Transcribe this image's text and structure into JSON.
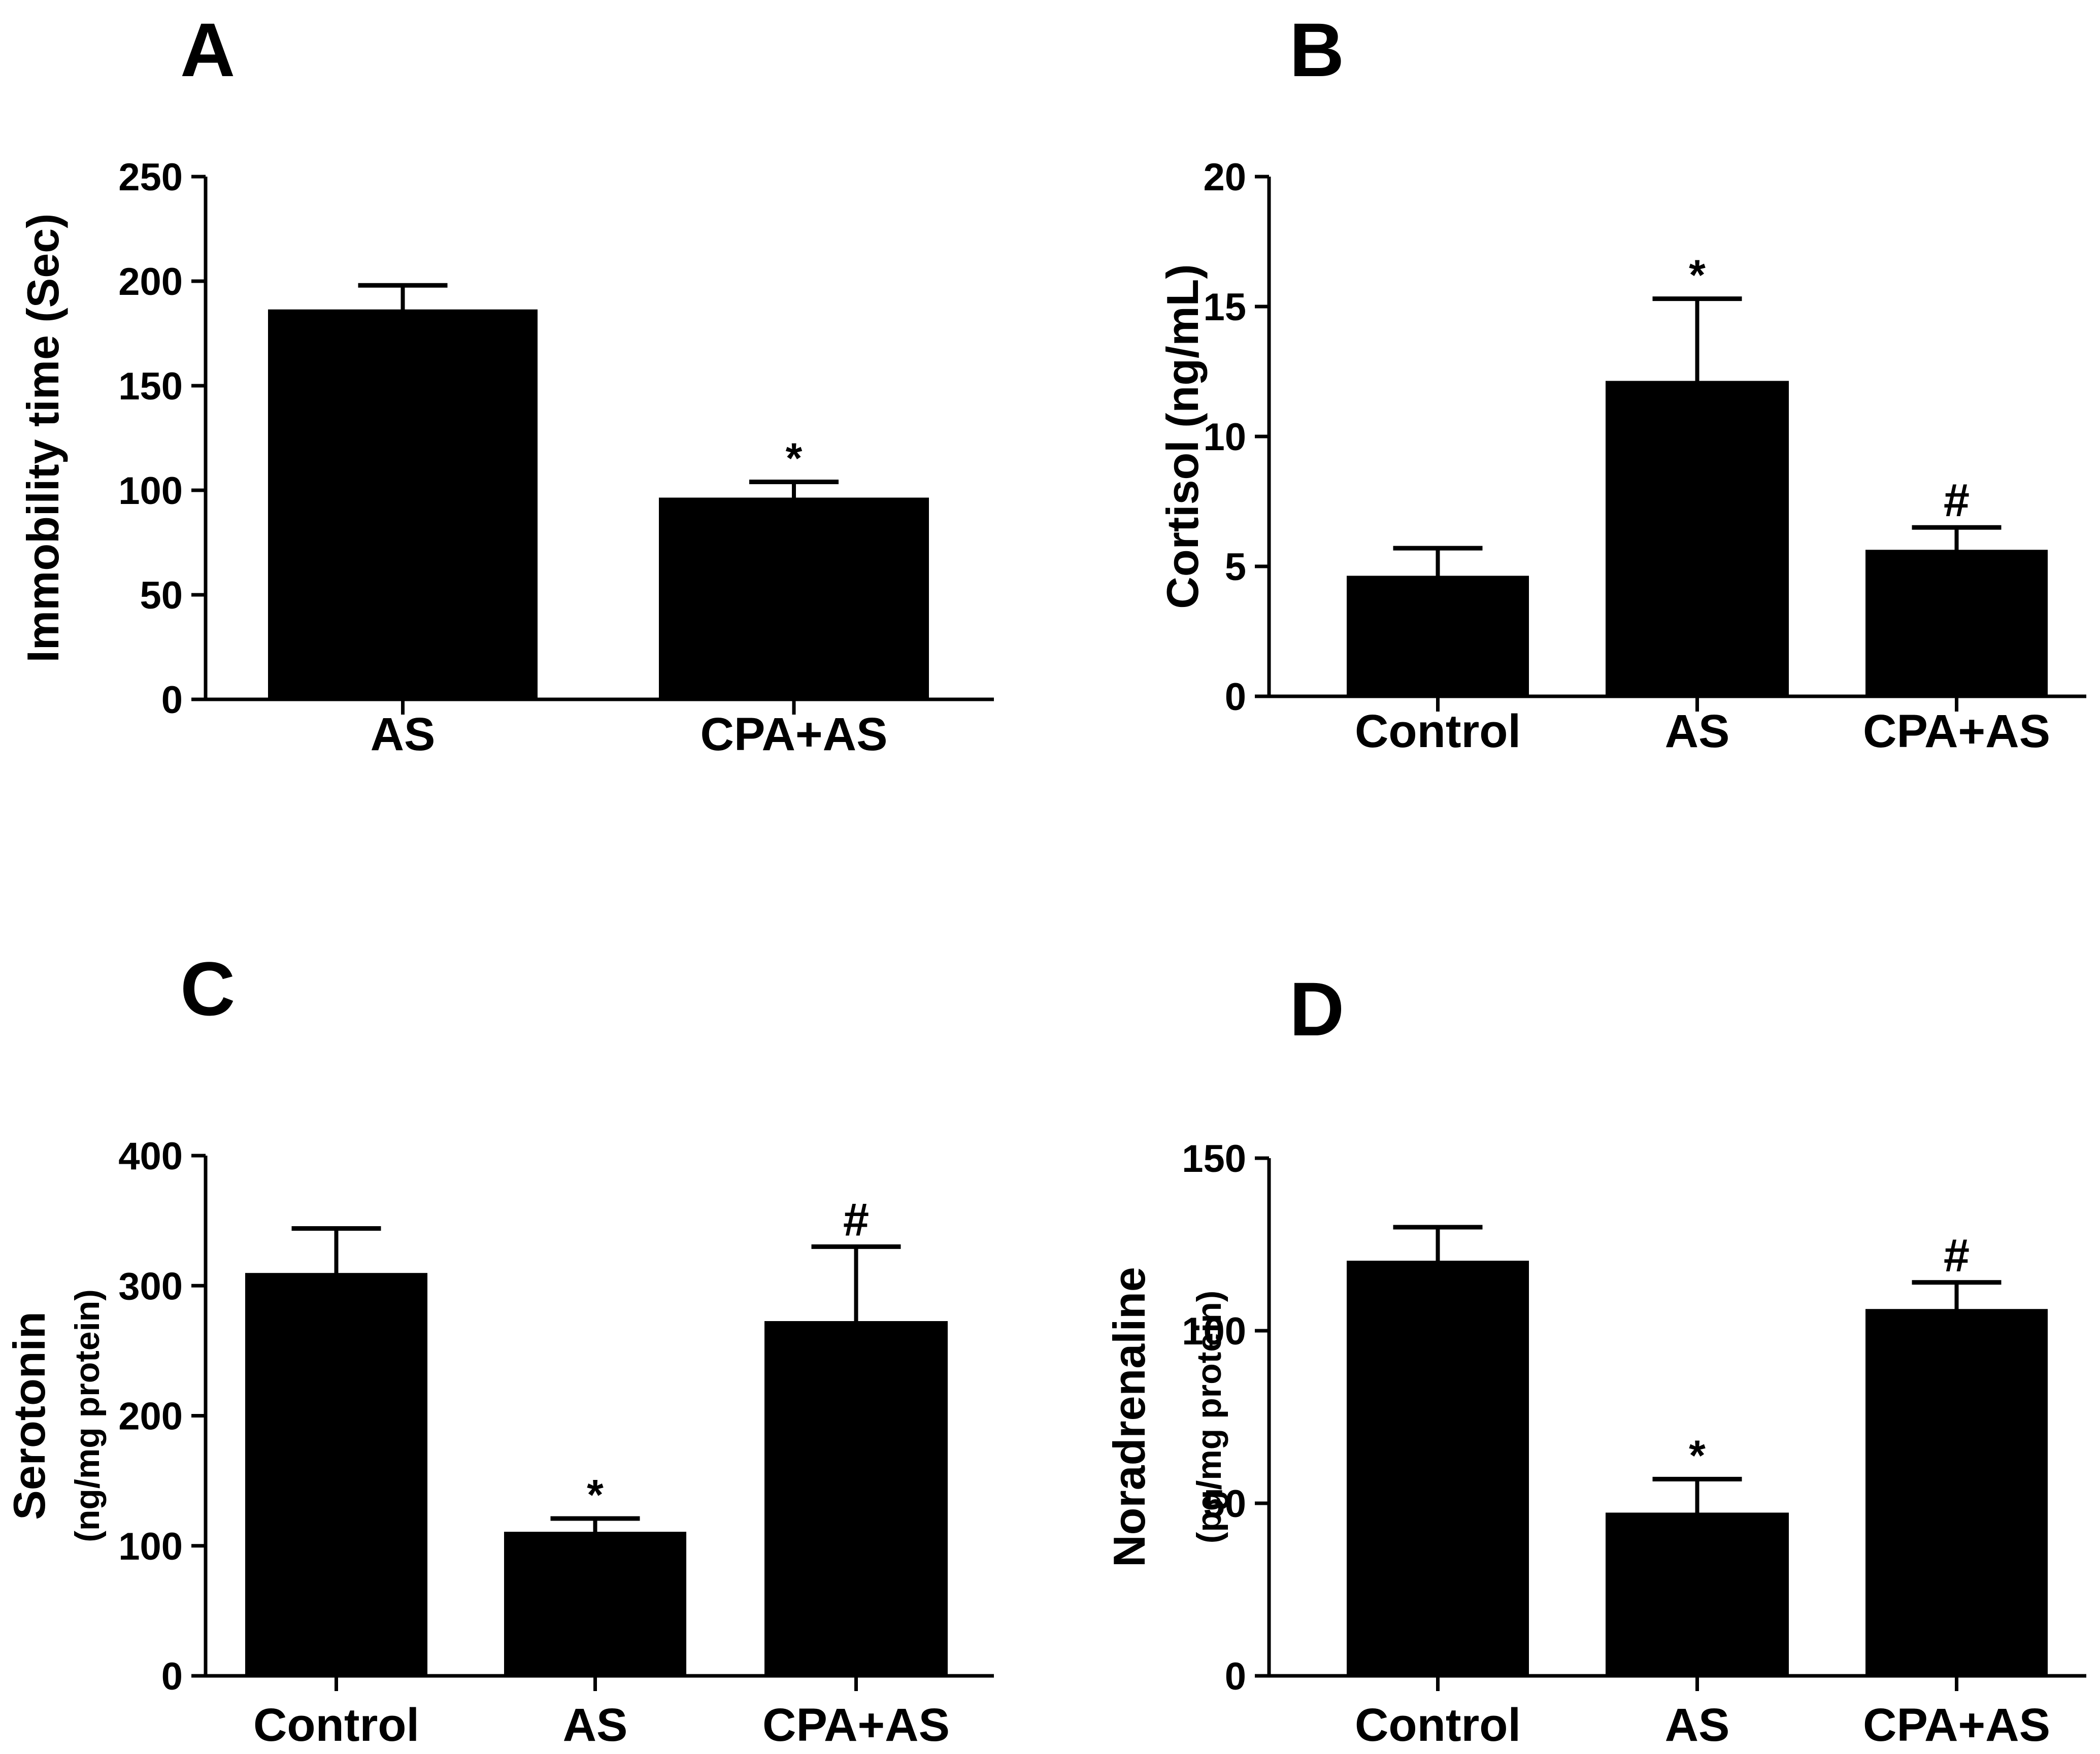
{
  "colors": {
    "bar": "#000000",
    "axis": "#000000",
    "background": "#ffffff"
  },
  "chart_data": [
    {
      "panel": "A",
      "type": "bar",
      "categories": [
        "AS",
        "CPA+AS"
      ],
      "values": [
        186,
        96
      ],
      "errors": [
        12,
        8
      ],
      "markers": [
        "",
        "*"
      ],
      "ylabel": "Immobility time (Sec)",
      "ylabel_sub": "",
      "ylim": [
        0,
        250
      ],
      "yticks": [
        0,
        50,
        100,
        150,
        200,
        250
      ]
    },
    {
      "panel": "B",
      "type": "bar",
      "categories": [
        "Control",
        "AS",
        "CPA+AS"
      ],
      "values": [
        4.6,
        12.1,
        5.6
      ],
      "errors": [
        1.1,
        3.2,
        0.9
      ],
      "markers": [
        "",
        "*",
        "#"
      ],
      "ylabel": "Cortisol (ng/mL)",
      "ylabel_sub": "",
      "ylim": [
        0,
        20
      ],
      "yticks": [
        0,
        5,
        10,
        15,
        20
      ]
    },
    {
      "panel": "C",
      "type": "bar",
      "categories": [
        "Control",
        "AS",
        "CPA+AS"
      ],
      "values": [
        309,
        110,
        272
      ],
      "errors": [
        35,
        11,
        58
      ],
      "markers": [
        "",
        "*",
        "#"
      ],
      "ylabel": "Serotonin",
      "ylabel_sub": "(ng/mg protein)",
      "ylim": [
        0,
        400
      ],
      "yticks": [
        0,
        100,
        200,
        300,
        400
      ]
    },
    {
      "panel": "D",
      "type": "bar",
      "categories": [
        "Control",
        "AS",
        "CPA+AS"
      ],
      "values": [
        120,
        47,
        106
      ],
      "errors": [
        10,
        10,
        8
      ],
      "markers": [
        "",
        "*",
        "#"
      ],
      "ylabel": "Noradrenaline",
      "ylabel_sub": "(pg/mg protein)",
      "ylim": [
        0,
        150
      ],
      "yticks": [
        0,
        50,
        100,
        150
      ]
    }
  ]
}
